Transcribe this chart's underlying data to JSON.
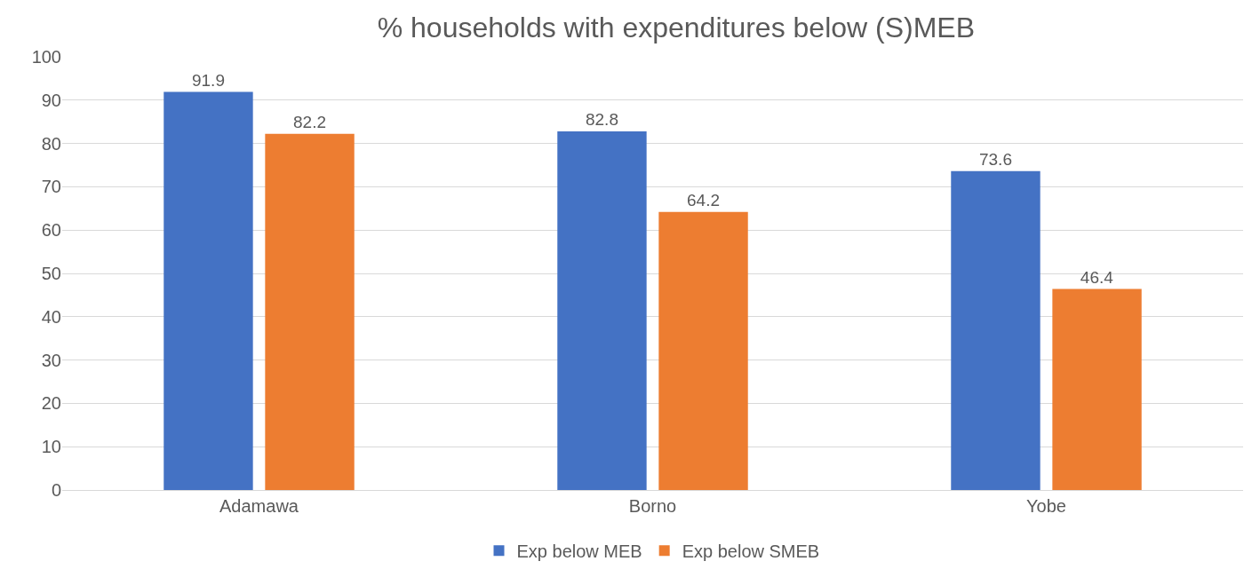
{
  "chart_data": {
    "type": "bar",
    "title": "% households with expenditures below (S)MEB",
    "categories": [
      "Adamawa",
      "Borno",
      "Yobe"
    ],
    "series": [
      {
        "name": "Exp below MEB",
        "color": "#4472c4",
        "values": [
          91.9,
          82.8,
          73.6
        ]
      },
      {
        "name": "Exp below SMEB",
        "color": "#ed7d31",
        "values": [
          82.2,
          64.2,
          46.4
        ]
      }
    ],
    "ylim": [
      0,
      100
    ],
    "yticks": [
      0,
      10,
      20,
      30,
      40,
      50,
      60,
      70,
      80,
      90,
      100
    ],
    "grid": "y",
    "legend": "bottom",
    "data_labels": true
  }
}
